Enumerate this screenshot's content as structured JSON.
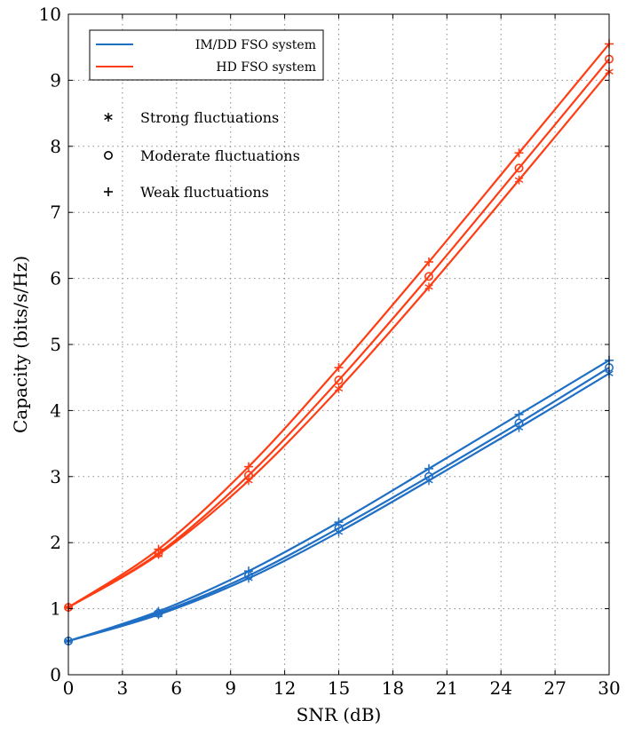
{
  "chart_data": {
    "type": "line",
    "title": "",
    "xlabel": "SNR (dB)",
    "ylabel": "Capacity (bits/s/Hz)",
    "xlim": [
      0,
      30
    ],
    "ylim": [
      0,
      10
    ],
    "xticks": [
      0,
      3,
      6,
      9,
      12,
      15,
      18,
      21,
      24,
      27,
      30
    ],
    "yticks": [
      0,
      1,
      2,
      3,
      4,
      5,
      6,
      7,
      8,
      9,
      10
    ],
    "grid": "dotted",
    "legend_position": "top-left",
    "colors": {
      "imdd": "#1f6fc5",
      "hd": "#ff3d14"
    },
    "legend": {
      "systems": [
        {
          "label": "IM/DD FSO system",
          "color": "#1f6fc5"
        },
        {
          "label": "HD FSO system",
          "color": "#ff3d14"
        }
      ],
      "markers": [
        {
          "label": "Strong fluctuations",
          "marker": "asterisk"
        },
        {
          "label": "Moderate fluctuations",
          "marker": "circle"
        },
        {
          "label": "Weak fluctuations",
          "marker": "plus"
        }
      ]
    },
    "marker_x": [
      0,
      5,
      10,
      15,
      20,
      25,
      30
    ],
    "series": [
      {
        "system": "IM/DD FSO system",
        "fluctuation": "Weak fluctuations",
        "marker": "plus",
        "color": "#1f6fc5",
        "x": [
          0,
          5,
          10,
          15,
          20,
          25,
          30
        ],
        "y": [
          0.51,
          0.96,
          1.57,
          2.31,
          3.12,
          3.94,
          4.76
        ]
      },
      {
        "system": "IM/DD FSO system",
        "fluctuation": "Moderate fluctuations",
        "marker": "circle",
        "color": "#1f6fc5",
        "x": [
          0,
          5,
          10,
          15,
          20,
          25,
          30
        ],
        "y": [
          0.51,
          0.93,
          1.5,
          2.22,
          3.0,
          3.81,
          4.65
        ]
      },
      {
        "system": "IM/DD FSO system",
        "fluctuation": "Strong fluctuations",
        "marker": "asterisk",
        "color": "#1f6fc5",
        "x": [
          0,
          5,
          10,
          15,
          20,
          25,
          30
        ],
        "y": [
          0.51,
          0.91,
          1.46,
          2.16,
          2.94,
          3.74,
          4.56
        ]
      },
      {
        "system": "HD FSO system",
        "fluctuation": "Weak fluctuations",
        "marker": "plus",
        "color": "#ff3d14",
        "x": [
          0,
          5,
          10,
          15,
          20,
          25,
          30
        ],
        "y": [
          1.02,
          1.9,
          3.15,
          4.65,
          6.25,
          7.9,
          9.55
        ]
      },
      {
        "system": "HD FSO system",
        "fluctuation": "Moderate fluctuations",
        "marker": "circle",
        "color": "#ff3d14",
        "x": [
          0,
          5,
          10,
          15,
          20,
          25,
          30
        ],
        "y": [
          1.02,
          1.84,
          3.02,
          4.46,
          6.03,
          7.67,
          9.32
        ]
      },
      {
        "system": "HD FSO system",
        "fluctuation": "Strong fluctuations",
        "marker": "asterisk",
        "color": "#ff3d14",
        "x": [
          0,
          5,
          10,
          15,
          20,
          25,
          30
        ],
        "y": [
          1.02,
          1.82,
          2.94,
          4.33,
          5.87,
          7.49,
          9.13
        ]
      }
    ]
  }
}
